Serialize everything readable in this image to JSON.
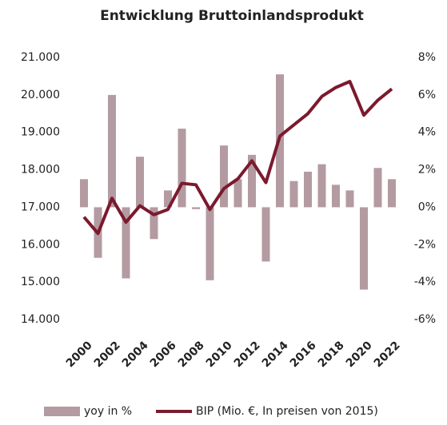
{
  "chart_data": {
    "type": "bar",
    "title": "Entwicklung Bruttoinlandsprodukt",
    "categories": [
      "2000",
      null,
      "2002",
      null,
      "2004",
      null,
      "2006",
      null,
      "2008",
      null,
      "2010",
      null,
      "2012",
      null,
      "2014",
      null,
      "2016",
      null,
      "2018",
      null,
      "2020",
      null,
      "2022"
    ],
    "series": [
      {
        "name": "yoy in %",
        "type": "bar",
        "axis": "y2",
        "color": "#b39ba1",
        "values": [
          1.5,
          -2.7,
          6.0,
          -3.8,
          2.7,
          -1.7,
          0.9,
          4.2,
          -0.1,
          -3.9,
          3.3,
          1.5,
          2.8,
          -2.9,
          7.1,
          1.4,
          1.9,
          2.3,
          1.2,
          0.9,
          -4.4,
          2.1,
          1.5
        ]
      },
      {
        "name": "BIP (Mio. €, In preisen von 2015)",
        "type": "line",
        "color": "#7b1a2e",
        "values": [
          16740,
          16300,
          17240,
          16600,
          17040,
          16800,
          16940,
          17640,
          17600,
          16940,
          17500,
          17760,
          18240,
          17660,
          18900,
          19200,
          19500,
          19960,
          20200,
          20360,
          19460,
          19860,
          20160
        ]
      }
    ],
    "ylim": [
      14000,
      21000
    ],
    "yticks": [
      {
        "value": 14000,
        "label": "14.000"
      },
      {
        "value": 15000,
        "label": "15.000"
      },
      {
        "value": 16000,
        "label": "16.000"
      },
      {
        "value": 17000,
        "label": "17.000"
      },
      {
        "value": 18000,
        "label": "18.000"
      },
      {
        "value": 19000,
        "label": "19.000"
      },
      {
        "value": 20000,
        "label": "20.000"
      },
      {
        "value": 21000,
        "label": "21.000"
      }
    ],
    "y2lim": [
      -6,
      8
    ],
    "y2ticks": [
      {
        "value": -6,
        "label": "-6%"
      },
      {
        "value": -4,
        "label": "-4%"
      },
      {
        "value": -2,
        "label": "-2%"
      },
      {
        "value": 0,
        "label": "0%"
      },
      {
        "value": 2,
        "label": "2%"
      },
      {
        "value": 4,
        "label": "4%"
      },
      {
        "value": 6,
        "label": "6%"
      },
      {
        "value": 8,
        "label": "8%"
      }
    ],
    "grid": false,
    "legend": "bottom"
  }
}
